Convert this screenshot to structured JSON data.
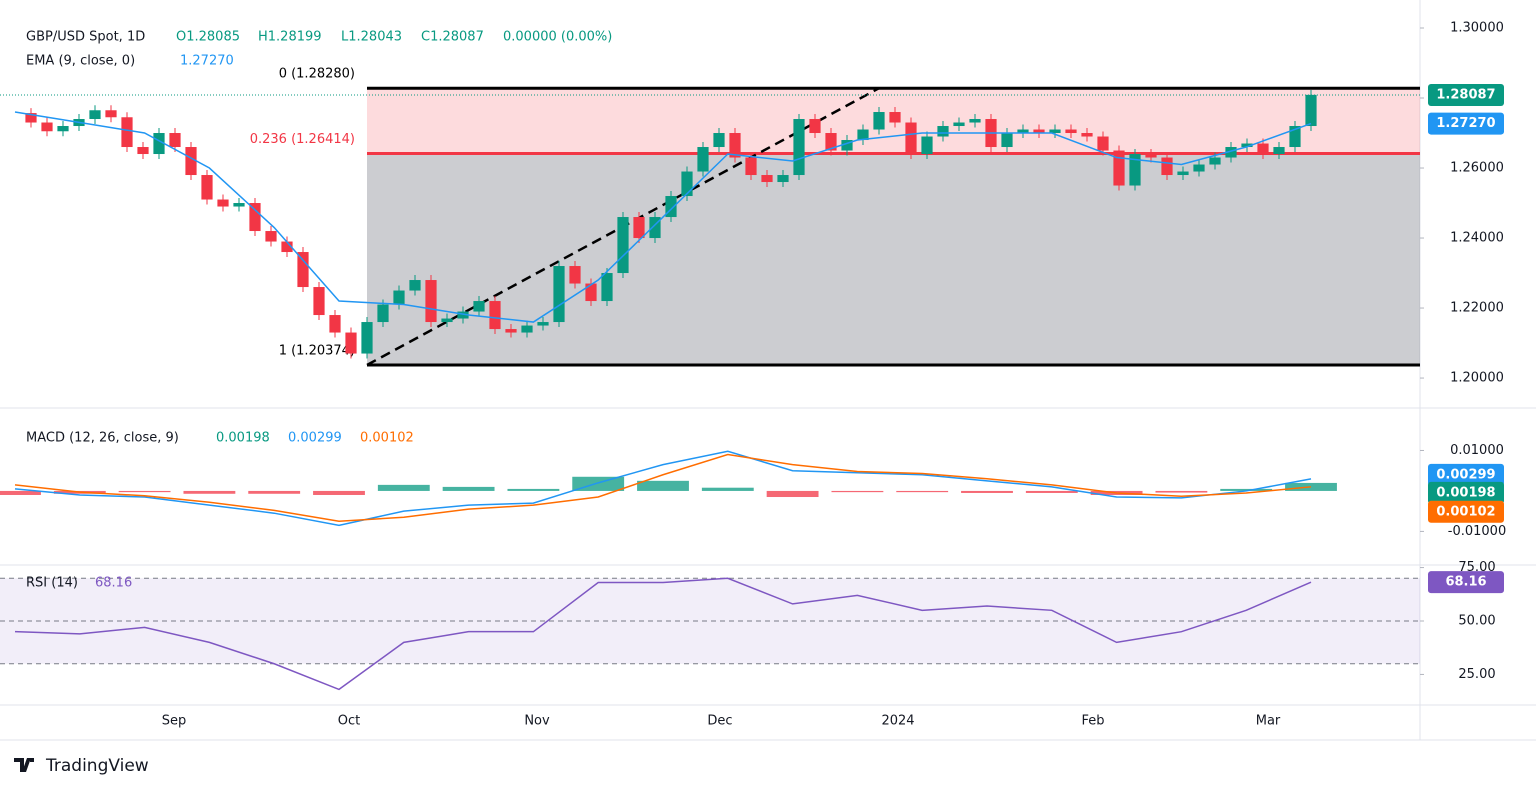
{
  "chart_data": {
    "type": "candlestick",
    "title": "GBP/USD Spot, 1D",
    "ohlc_labels": [
      "O1.28085",
      "H1.28199",
      "L1.28043",
      "C1.28087"
    ],
    "change_label": "0.00000 (0.00%)",
    "up_color": "#089981",
    "down_color": "#f23645",
    "closes": [
      1.2757,
      1.273,
      1.2705,
      1.272,
      1.274,
      1.2765,
      1.2745,
      1.266,
      1.264,
      1.27,
      1.266,
      1.258,
      1.251,
      1.249,
      1.25,
      1.242,
      1.239,
      1.236,
      1.226,
      1.218,
      1.213,
      1.207,
      1.216,
      1.221,
      1.225,
      1.228,
      1.216,
      1.217,
      1.219,
      1.222,
      1.214,
      1.213,
      1.215,
      1.216,
      1.232,
      1.227,
      1.222,
      1.23,
      1.246,
      1.24,
      1.246,
      1.252,
      1.259,
      1.266,
      1.27,
      1.263,
      1.258,
      1.256,
      1.258,
      1.274,
      1.27,
      1.265,
      1.268,
      1.271,
      1.276,
      1.273,
      1.264,
      1.269,
      1.272,
      1.273,
      1.274,
      1.266,
      1.27,
      1.271,
      1.27,
      1.271,
      1.27,
      1.269,
      1.265,
      1.255,
      1.264,
      1.263,
      1.258,
      1.259,
      1.261,
      1.263,
      1.266,
      1.267,
      1.264,
      1.266,
      1.272,
      1.2809
    ],
    "ylim": [
      1.1923,
      1.308
    ],
    "yticks": [
      {
        "value": 1.3,
        "label": "1.30000"
      },
      {
        "value": 1.28,
        "label": "1.28000"
      },
      {
        "value": 1.26,
        "label": "1.26000"
      },
      {
        "value": 1.24,
        "label": "1.24000"
      },
      {
        "value": 1.22,
        "label": "1.22000"
      },
      {
        "value": 1.2,
        "label": "1.20000"
      }
    ],
    "last_price": {
      "value": 1.28087,
      "label": "1.28087"
    },
    "x_labels": [
      "Sep",
      "Oct",
      "Nov",
      "Dec",
      "2024",
      "Feb",
      "Mar"
    ],
    "fib_levels": [
      {
        "value": 1.2828,
        "label": "0 (1.28280)",
        "color": "#000000"
      },
      {
        "value": 1.26414,
        "label": "0.236 (1.26414)",
        "color": "#f23645"
      },
      {
        "value": 1.20374,
        "label": "1 (1.20374)",
        "color": "#000000"
      }
    ],
    "ema": {
      "name": "EMA (9, close, 0)",
      "color": "#2196f3",
      "values": [
        1.276,
        1.273,
        1.27,
        1.26,
        1.243,
        1.222,
        1.221,
        1.218,
        1.216,
        1.228,
        1.246,
        1.264,
        1.262,
        1.268,
        1.27,
        1.27,
        1.27,
        1.263,
        1.261,
        1.266,
        1.2727
      ],
      "last": {
        "value": 1.2727,
        "label": "1.27270"
      }
    },
    "macd": {
      "name": "MACD (12, 26, close, 9)",
      "ylim": [
        -0.0183,
        0.02
      ],
      "yticks": [
        {
          "value": 0.01,
          "label": "0.01000"
        },
        {
          "value": -0.01,
          "label": "-0.01000"
        }
      ],
      "histogram": {
        "values": [
          -0.001,
          -0.0007,
          -0.0003,
          -0.0007,
          -0.0007,
          -0.001,
          0.0015,
          0.001,
          0.0005,
          0.0035,
          0.0025,
          0.0008,
          -0.0015,
          -0.0003,
          -0.0003,
          -0.0005,
          -0.0005,
          -0.001,
          -0.0004,
          0.0005,
          0.00198
        ],
        "last": {
          "value": 0.00198,
          "label": "0.00198"
        },
        "color": "#089981"
      },
      "macd_line": {
        "color": "#2196f3",
        "values": [
          0.0005,
          -0.001,
          -0.0015,
          -0.0035,
          -0.0055,
          -0.0085,
          -0.005,
          -0.0035,
          -0.003,
          0.002,
          0.0065,
          0.0098,
          0.005,
          0.0045,
          0.004,
          0.0025,
          0.001,
          -0.0015,
          -0.0017,
          0.0,
          0.00299
        ],
        "last": {
          "value": 0.00299,
          "label": "0.00299"
        }
      },
      "signal_line": {
        "color": "#ff6d00",
        "values": [
          0.0015,
          -0.0003,
          -0.0012,
          -0.0028,
          -0.0048,
          -0.0075,
          -0.0065,
          -0.0045,
          -0.0035,
          -0.0015,
          0.004,
          0.009,
          0.0065,
          0.0048,
          0.0043,
          0.003,
          0.0015,
          -0.0005,
          -0.0013,
          -0.0005,
          0.00102
        ],
        "last": {
          "value": 0.00102,
          "label": "0.00102"
        }
      }
    },
    "rsi": {
      "name": "RSI (14)",
      "color": "#7e57c2",
      "ylim": [
        10.7,
        76.2
      ],
      "yticks": [
        {
          "value": 75,
          "label": "75.00"
        },
        {
          "value": 50,
          "label": "50.00"
        },
        {
          "value": 25,
          "label": "25.00"
        }
      ],
      "bands": [
        70,
        50,
        30
      ],
      "values": [
        45,
        44,
        47,
        40,
        30,
        18,
        40,
        45,
        45,
        68,
        68,
        70,
        58,
        62,
        55,
        57,
        55,
        40,
        45,
        55,
        68.16
      ],
      "last": {
        "value": 68.16,
        "label": "68.16"
      }
    },
    "brand": "TradingView"
  }
}
